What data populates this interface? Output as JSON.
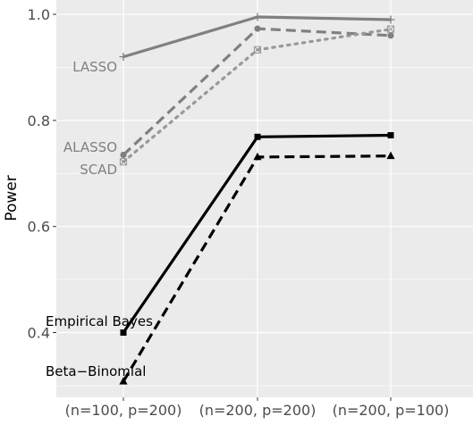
{
  "chart_data": {
    "type": "line",
    "xlabel": "",
    "ylabel": "Power",
    "categories": [
      "(n=100, p=200)",
      "(n=200, p=200)",
      "(n=200, p=100)"
    ],
    "y_ticks": [
      "0.4",
      "0.6",
      "0.8",
      "1.0"
    ],
    "y_tick_values": [
      0.4,
      0.6,
      0.8,
      1.0
    ],
    "ylim": [
      0.278,
      1.027
    ],
    "grid": true,
    "legend": "direct labels at left",
    "background_color": "#ebebeb",
    "grid_color": "#ffffff",
    "series": [
      {
        "name": "LASSO",
        "values": [
          0.92,
          0.995,
          0.99
        ],
        "color": "#808080",
        "line": "solid",
        "marker": "plus"
      },
      {
        "name": "ALASSO",
        "values": [
          0.735,
          0.973,
          0.96
        ],
        "color": "#808080",
        "line": "dashed",
        "marker": "circle"
      },
      {
        "name": "SCAD",
        "values": [
          0.722,
          0.933,
          0.972
        ],
        "color": "#999999",
        "line": "dotted",
        "marker": "square-x"
      },
      {
        "name": "Empirical Bayes",
        "values": [
          0.4,
          0.769,
          0.772
        ],
        "color": "#000000",
        "line": "solid",
        "marker": "square"
      },
      {
        "name": "Beta−Binomial",
        "values": [
          0.308,
          0.731,
          0.733
        ],
        "color": "#000000",
        "line": "dashed",
        "marker": "triangle"
      }
    ]
  }
}
